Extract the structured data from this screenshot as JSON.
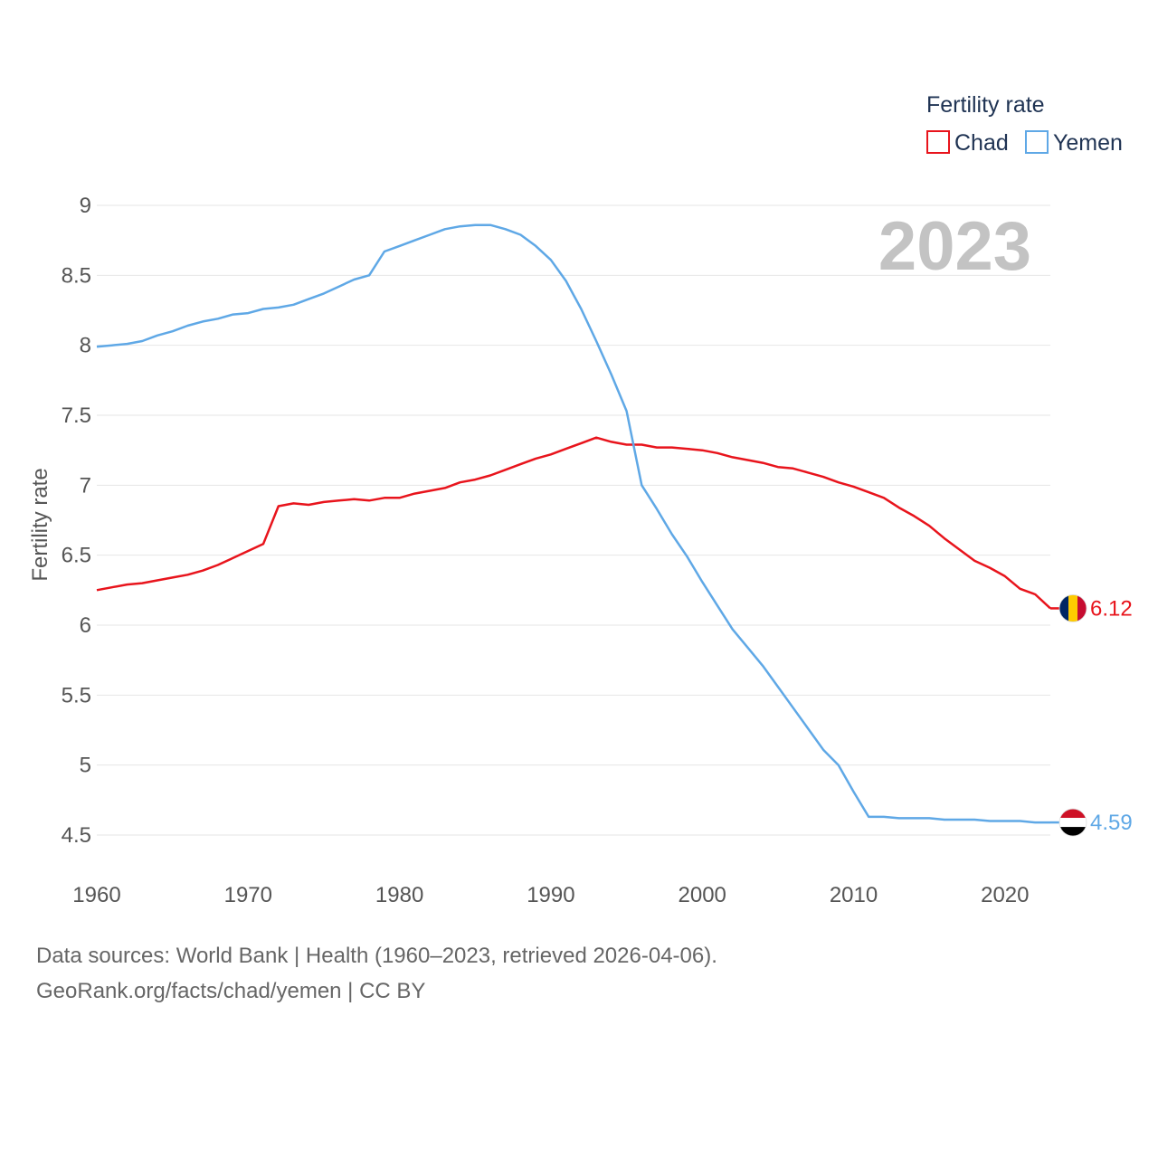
{
  "chart_data": {
    "type": "line",
    "title": "2023",
    "xlabel": "",
    "ylabel": "Fertility rate",
    "xlim": [
      1960,
      2023
    ],
    "ylim": [
      4.5,
      9
    ],
    "xticks": [
      1960,
      1970,
      1980,
      1990,
      2000,
      2010,
      2020
    ],
    "yticks": [
      4.5,
      5,
      5.5,
      6,
      6.5,
      7,
      7.5,
      8,
      8.5,
      9
    ],
    "ytick_labels": [
      "4.5",
      "5",
      "5.5",
      "6",
      "6.5",
      "7",
      "7.5",
      "8",
      "8.5",
      "9"
    ],
    "legend": {
      "title": "Fertility rate",
      "position": "top-right"
    },
    "x": [
      1960,
      1961,
      1962,
      1963,
      1964,
      1965,
      1966,
      1967,
      1968,
      1969,
      1970,
      1971,
      1972,
      1973,
      1974,
      1975,
      1976,
      1977,
      1978,
      1979,
      1980,
      1981,
      1982,
      1983,
      1984,
      1985,
      1986,
      1987,
      1988,
      1989,
      1990,
      1991,
      1992,
      1993,
      1994,
      1995,
      1996,
      1997,
      1998,
      1999,
      2000,
      2001,
      2002,
      2003,
      2004,
      2005,
      2006,
      2007,
      2008,
      2009,
      2010,
      2011,
      2012,
      2013,
      2014,
      2015,
      2016,
      2017,
      2018,
      2019,
      2020,
      2021,
      2022,
      2023
    ],
    "series": [
      {
        "name": "Chad",
        "color": "#e8141c",
        "end_label": "6.12",
        "flag": "chad-flag-icon",
        "values": [
          6.25,
          6.27,
          6.29,
          6.3,
          6.32,
          6.34,
          6.36,
          6.39,
          6.43,
          6.48,
          6.53,
          6.58,
          6.85,
          6.87,
          6.86,
          6.88,
          6.89,
          6.9,
          6.89,
          6.91,
          6.91,
          6.94,
          6.96,
          6.98,
          7.02,
          7.04,
          7.07,
          7.11,
          7.15,
          7.19,
          7.22,
          7.26,
          7.3,
          7.34,
          7.31,
          7.29,
          7.29,
          7.27,
          7.27,
          7.26,
          7.25,
          7.23,
          7.2,
          7.18,
          7.16,
          7.13,
          7.12,
          7.09,
          7.06,
          7.02,
          6.99,
          6.95,
          6.91,
          6.84,
          6.78,
          6.71,
          6.62,
          6.54,
          6.46,
          6.41,
          6.35,
          6.26,
          6.22,
          6.12
        ]
      },
      {
        "name": "Yemen",
        "color": "#5fa8e6",
        "end_label": "4.59",
        "flag": "yemen-flag-icon",
        "values": [
          7.99,
          8.0,
          8.01,
          8.03,
          8.07,
          8.1,
          8.14,
          8.17,
          8.19,
          8.22,
          8.23,
          8.26,
          8.27,
          8.29,
          8.33,
          8.37,
          8.42,
          8.47,
          8.5,
          8.67,
          8.71,
          8.75,
          8.79,
          8.83,
          8.85,
          8.86,
          8.86,
          8.83,
          8.79,
          8.71,
          8.61,
          8.46,
          8.26,
          8.03,
          7.79,
          7.53,
          7.0,
          6.83,
          6.65,
          6.49,
          6.31,
          6.14,
          5.97,
          5.84,
          5.71,
          5.56,
          5.41,
          5.26,
          5.11,
          5.0,
          4.81,
          4.63,
          4.63,
          4.62,
          4.62,
          4.62,
          4.61,
          4.61,
          4.61,
          4.6,
          4.6,
          4.6,
          4.59,
          4.59
        ]
      }
    ]
  },
  "footer": {
    "sources": "Data sources: World Bank | Health (1960–2023, retrieved 2026-04-06).",
    "credit": "GeoRank.org/facts/chad/yemen | CC BY"
  }
}
